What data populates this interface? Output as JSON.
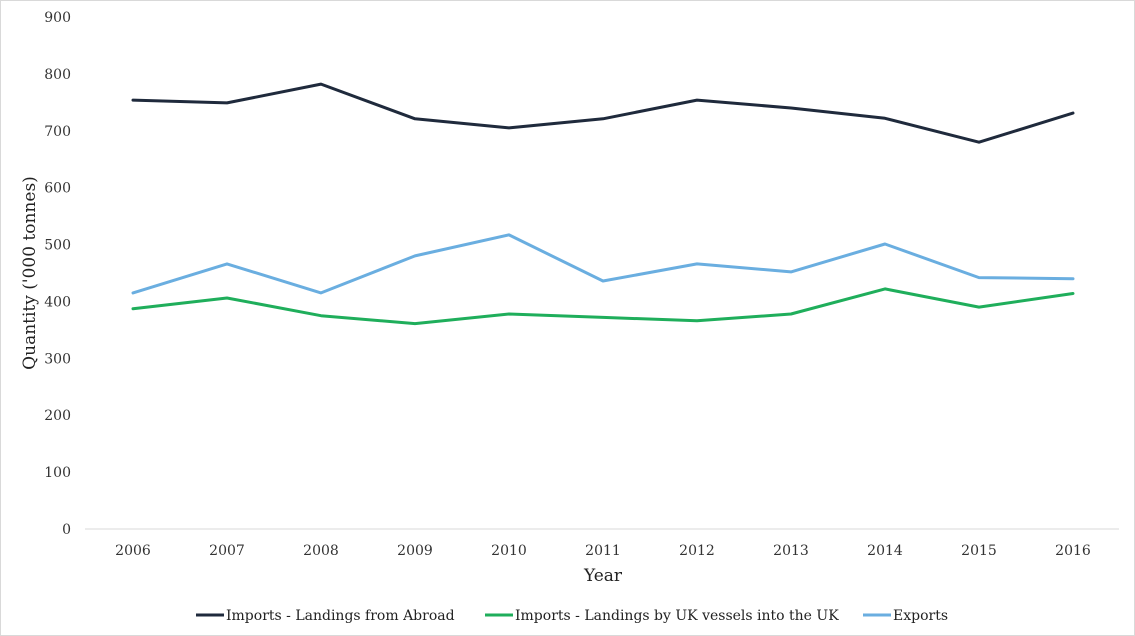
{
  "chart_data": {
    "type": "line",
    "title": "",
    "xlabel": "Year",
    "ylabel": "Quantity ('000 tonnes)",
    "x": [
      "2006",
      "2007",
      "2008",
      "2009",
      "2010",
      "2011",
      "2012",
      "2013",
      "2014",
      "2015",
      "2016"
    ],
    "ylim": [
      0,
      900
    ],
    "yticks": [
      0,
      100,
      200,
      300,
      400,
      500,
      600,
      700,
      800,
      900
    ],
    "grid": false,
    "legend_position": "bottom",
    "series": [
      {
        "name": "Imports -  Landings from Abroad",
        "color": "#1f2a3c",
        "values": [
          754,
          749,
          782,
          721,
          705,
          721,
          754,
          740,
          722,
          680,
          731
        ]
      },
      {
        "name": "Imports -  Landings by UK vessels into the UK",
        "color": "#1fae5b",
        "values": [
          387,
          406,
          375,
          361,
          378,
          372,
          366,
          378,
          422,
          390,
          414
        ]
      },
      {
        "name": "Exports",
        "color": "#6aaee0",
        "values": [
          415,
          466,
          415,
          480,
          517,
          436,
          466,
          452,
          501,
          442,
          440
        ]
      }
    ]
  }
}
